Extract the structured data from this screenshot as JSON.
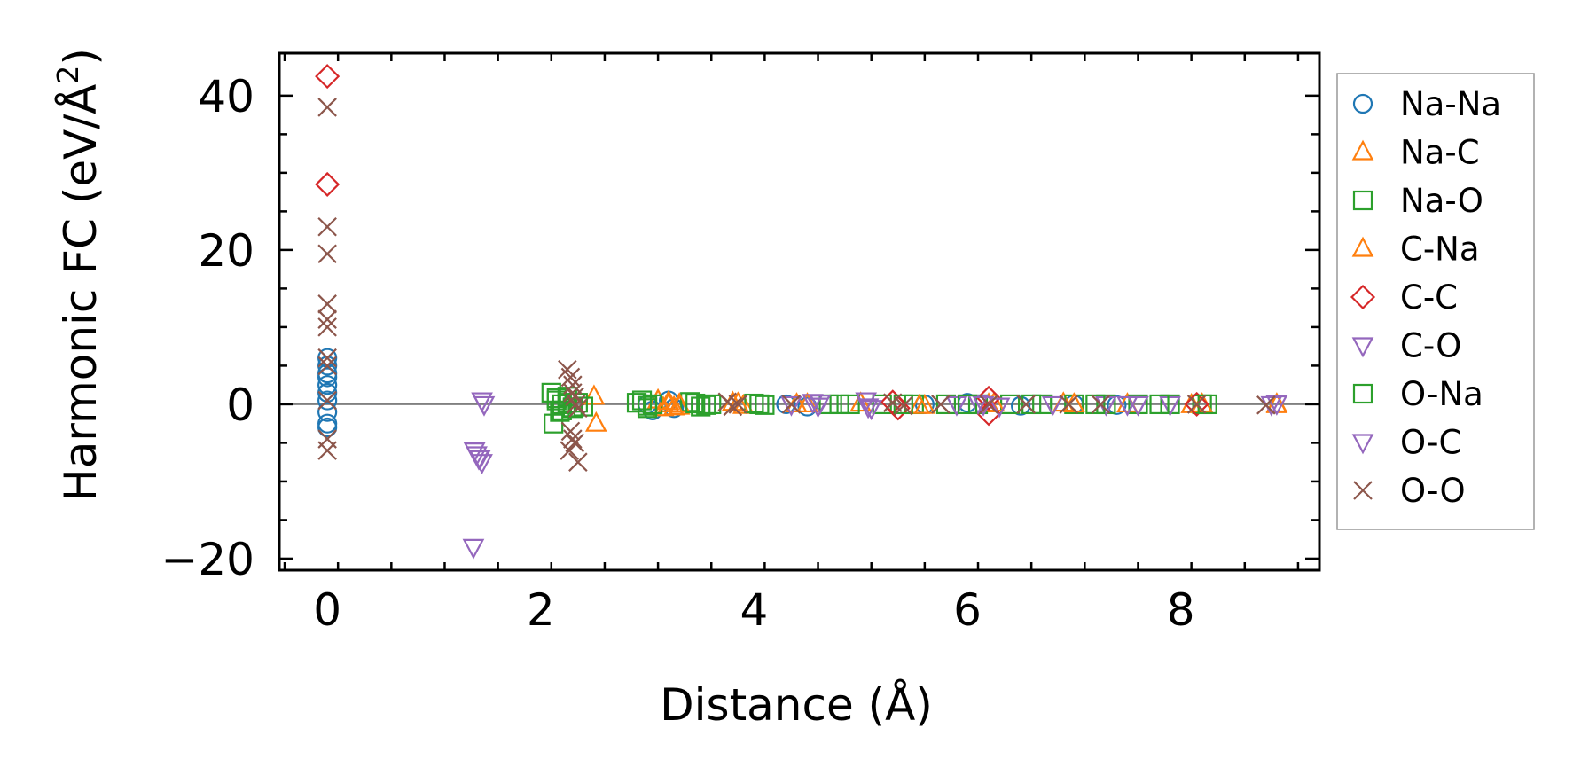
{
  "chart_data": {
    "type": "scatter",
    "xlabel": "Distance (Å)",
    "ylabel_main": "Harmonic FC (eV/Å",
    "ylabel_sup": "2",
    "ylabel_close": ")",
    "xlim": [
      -0.45,
      9.3
    ],
    "ylim": [
      -21.5,
      45.5
    ],
    "xticks": [
      0,
      2,
      4,
      6,
      8
    ],
    "xtick_labels": [
      "0",
      "2",
      "4",
      "6",
      "8"
    ],
    "yticks": [
      -20,
      0,
      20,
      40
    ],
    "ytick_labels": [
      "−20",
      "0",
      "20",
      "40"
    ],
    "reference_line_y": 0,
    "legend_position": "outside-right",
    "series": [
      {
        "name": "Na-Na",
        "marker": "circle",
        "color": "#1f77b4",
        "x": [
          0,
          0,
          0,
          0,
          0,
          0,
          0,
          0,
          0,
          0,
          3.0,
          3.05,
          3.2,
          3.25,
          4.3,
          4.5,
          5.6,
          6.0,
          6.5,
          7.0,
          7.4
        ],
        "y": [
          6,
          5,
          4,
          3.5,
          2.5,
          1.5,
          0.5,
          -1,
          -2.5,
          -3,
          0,
          -0.8,
          0.5,
          -0.5,
          0,
          -0.3,
          0,
          0.2,
          -0.2,
          0,
          -0.1
        ]
      },
      {
        "name": "Na-C",
        "marker": "triangle-up",
        "color": "#ff7f0e",
        "x": [
          2.5,
          2.52,
          3.1,
          3.15,
          3.2,
          3.3,
          3.8,
          3.9,
          4.5,
          5.0,
          5.6,
          6.2,
          6.9,
          7.5,
          8.1,
          8.9
        ],
        "y": [
          1,
          -2.5,
          0.5,
          -0.5,
          0,
          -0.3,
          0.2,
          -0.2,
          0,
          0.1,
          -0.2,
          0,
          0.1,
          0,
          -0.1,
          0
        ]
      },
      {
        "name": "Na-O",
        "marker": "square",
        "color": "#2ca02c",
        "x": [
          2.1,
          2.12,
          2.15,
          2.18,
          2.2,
          2.25,
          2.3,
          2.35,
          2.4,
          2.95,
          3.0,
          3.05,
          3.4,
          3.5,
          3.6,
          4.0,
          4.1,
          4.7,
          4.9,
          5.2,
          5.5,
          5.8,
          6.1,
          6.4,
          6.7,
          7.0,
          7.3,
          7.6,
          7.9,
          8.2
        ],
        "y": [
          1.5,
          -2.5,
          0.5,
          -1,
          0,
          1,
          -0.5,
          0.2,
          -0.3,
          0.5,
          -0.5,
          0,
          0.3,
          -0.3,
          0,
          0.1,
          -0.1,
          0,
          0,
          0,
          0,
          0,
          0,
          0,
          0,
          0,
          0,
          0,
          0,
          0
        ]
      },
      {
        "name": "C-Na",
        "marker": "triangle-up",
        "color": "#ff7f0e",
        "x": [
          3.2,
          3.25,
          3.3,
          3.85,
          4.4,
          5.55,
          6.25,
          7.0,
          8.2,
          8.9
        ],
        "y": [
          0.3,
          -0.4,
          0,
          0.1,
          0,
          -0.2,
          0.1,
          0,
          0,
          -0.1
        ]
      },
      {
        "name": "C-C",
        "marker": "diamond",
        "color": "#d62728",
        "x": [
          0,
          0,
          5.3,
          5.35,
          6.2,
          6.2,
          8.15
        ],
        "y": [
          42.5,
          28.5,
          0.3,
          -0.5,
          0.8,
          -1.2,
          0
        ]
      },
      {
        "name": "C-O",
        "marker": "triangle-down",
        "color": "#9467bd",
        "x": [
          1.37,
          1.4,
          1.42,
          1.45,
          1.45,
          4.35,
          4.55,
          4.6,
          5.05,
          5.1,
          5.9,
          6.1,
          6.3,
          6.8,
          7.3,
          7.6,
          7.9,
          8.85
        ],
        "y": [
          -18.5,
          -6.5,
          -7,
          0.5,
          -7.5,
          0,
          0.3,
          -0.2,
          0.5,
          -0.5,
          0,
          0.2,
          -0.2,
          0,
          0,
          0,
          0,
          0
        ]
      },
      {
        "name": "O-Na",
        "marker": "square",
        "color": "#2ca02c",
        "x": [
          2.15,
          2.2,
          2.25,
          2.3,
          2.9,
          3.0,
          3.45,
          3.55,
          4.05,
          4.8,
          5.4,
          6.0,
          6.6,
          7.2,
          7.8,
          8.25
        ],
        "y": [
          0.8,
          -0.8,
          0.2,
          -0.4,
          0.2,
          -0.2,
          0.1,
          -0.1,
          0,
          0,
          0,
          0,
          0,
          0,
          0,
          0
        ]
      },
      {
        "name": "O-C",
        "marker": "triangle-down",
        "color": "#9467bd",
        "x": [
          1.38,
          1.43,
          1.47,
          4.62,
          5.07,
          6.15,
          7.5,
          8.9
        ],
        "y": [
          -6,
          -7,
          0,
          0.2,
          -0.3,
          0,
          0,
          0.1
        ]
      },
      {
        "name": "O-O",
        "marker": "x",
        "color": "#8c564b",
        "x": [
          0,
          0,
          0,
          0,
          0,
          0,
          0,
          0,
          0,
          0,
          0,
          2.25,
          2.28,
          2.3,
          2.3,
          2.32,
          2.33,
          2.35,
          2.28,
          2.3,
          2.32,
          2.27,
          2.35,
          3.75,
          3.8,
          3.85,
          4.35,
          5.3,
          5.4,
          5.75,
          6.2,
          6.55,
          6.95,
          7.25,
          8.15,
          8.8
        ],
        "y": [
          38.5,
          23,
          19.5,
          13,
          11,
          10,
          6,
          5,
          0.5,
          -4.5,
          -6,
          4.5,
          3.5,
          2.5,
          1.5,
          1,
          0,
          -0.5,
          -3.5,
          -4.5,
          -5,
          -6,
          -7.5,
          0.3,
          -0.3,
          0,
          0,
          0.2,
          -0.2,
          0,
          0,
          0,
          0,
          0,
          0,
          -0.1
        ]
      }
    ]
  }
}
